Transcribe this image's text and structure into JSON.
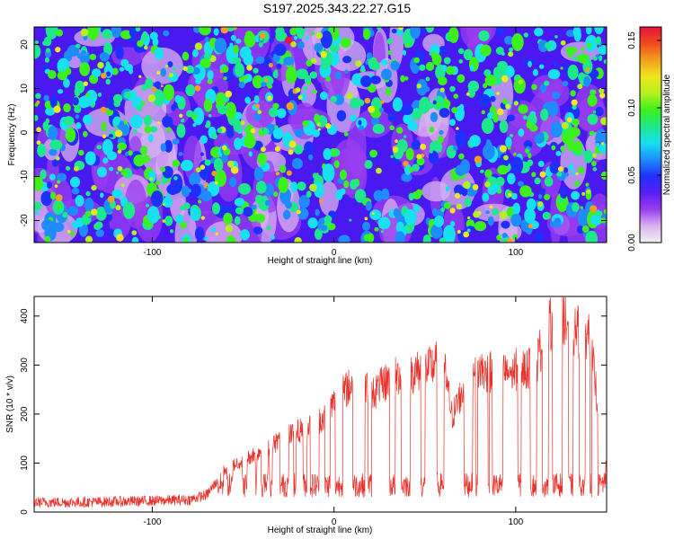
{
  "title": "S197.2025.343.22.27.G15",
  "colors": {
    "snr_line": "#e8312a",
    "colormap": [
      "#f2f2f2",
      "#d9b3f0",
      "#9a3df0",
      "#5a1ef2",
      "#1e30ff",
      "#1e8cff",
      "#17e0f0",
      "#1ee88c",
      "#3cf01e",
      "#b4f01e",
      "#f0e61e",
      "#f0a01e",
      "#f04a1e",
      "#e8123c"
    ]
  },
  "chart_data": [
    {
      "type": "heatmap",
      "xlabel": "Height of straight line (km)",
      "ylabel": "Frequency (Hz)",
      "xlim": [
        -165,
        150
      ],
      "ylim": [
        -25,
        24
      ],
      "xticks": [
        -100,
        0,
        100
      ],
      "yticks": [
        -20,
        -10,
        0,
        10,
        20
      ],
      "colorbar": {
        "label": "Normalized spectral amplitude",
        "range": [
          0,
          0.16
        ],
        "ticks": [
          0.0,
          0.05,
          0.1,
          0.15
        ],
        "tick_labels": [
          "0.00",
          "0.05",
          "0.10",
          "0.15"
        ]
      }
    },
    {
      "type": "line",
      "xlabel": "Height of straight line (km)",
      "ylabel": "SNR (10 * v/v)",
      "xlim": [
        -165,
        150
      ],
      "ylim": [
        0,
        440
      ],
      "xticks": [
        -100,
        0,
        100
      ],
      "yticks": [
        0,
        100,
        200,
        300,
        400
      ],
      "series": [
        {
          "x": [
            -165,
            -140,
            -110,
            -80,
            -70,
            -65,
            -60,
            -50,
            -40,
            -30,
            -20,
            -10,
            -5,
            0,
            5,
            10,
            15,
            20,
            25,
            30,
            40,
            50,
            60,
            65,
            70,
            75,
            80,
            90,
            100,
            110,
            115,
            120,
            125,
            130,
            140,
            150
          ],
          "values": [
            20,
            20,
            22,
            25,
            35,
            60,
            90,
            110,
            130,
            150,
            170,
            190,
            200,
            230,
            250,
            270,
            280,
            250,
            260,
            280,
            290,
            300,
            320,
            200,
            250,
            270,
            300,
            290,
            300,
            300,
            360,
            400,
            430,
            380,
            380,
            90
          ]
        }
      ]
    }
  ]
}
